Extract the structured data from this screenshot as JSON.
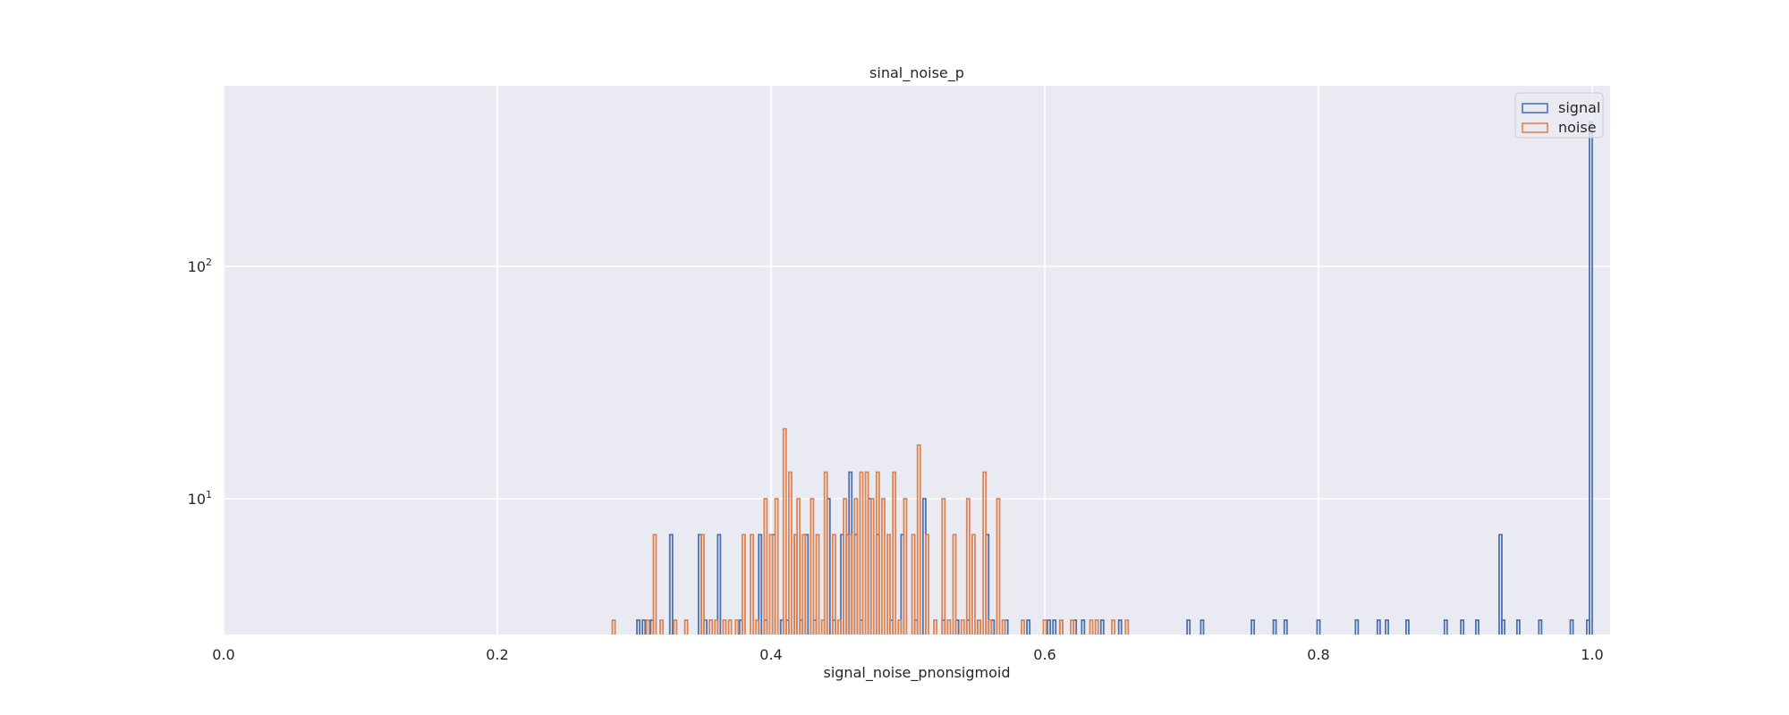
{
  "chart_data": {
    "type": "histogram",
    "histtype": "step",
    "title": "sinal_noise_p",
    "xlabel": "signal_noise_pnonsigmoid",
    "ylabel": "",
    "xlim": [
      0.0,
      1.0
    ],
    "xticks": [
      0.0,
      0.2,
      0.4,
      0.6,
      0.8,
      1.0
    ],
    "xtick_labels": [
      "0.0",
      "0.2",
      "0.4",
      "0.6",
      "0.8",
      "1.0"
    ],
    "yscale": "log",
    "ylim": [
      2.6,
      600
    ],
    "yticks": [
      10,
      100
    ],
    "ytick_labels": [
      "10",
      "100"
    ],
    "ytick_base": "10",
    "ytick_exponents": [
      "1",
      "2"
    ],
    "bin_width": 0.002,
    "grid": true,
    "legend_position": "upper right",
    "background": "#eaeaf2",
    "series": [
      {
        "name": "signal",
        "color": "#4c72b0",
        "bins": [
          [
            0.303,
            3
          ],
          [
            0.307,
            3
          ],
          [
            0.313,
            3
          ],
          [
            0.327,
            7
          ],
          [
            0.348,
            7
          ],
          [
            0.352,
            3
          ],
          [
            0.362,
            7
          ],
          [
            0.378,
            3
          ],
          [
            0.392,
            7
          ],
          [
            0.396,
            3
          ],
          [
            0.402,
            7
          ],
          [
            0.408,
            3
          ],
          [
            0.412,
            3
          ],
          [
            0.418,
            7
          ],
          [
            0.422,
            3
          ],
          [
            0.426,
            7
          ],
          [
            0.432,
            3
          ],
          [
            0.442,
            10
          ],
          [
            0.446,
            3
          ],
          [
            0.452,
            7
          ],
          [
            0.456,
            7
          ],
          [
            0.458,
            13
          ],
          [
            0.462,
            7
          ],
          [
            0.466,
            3
          ],
          [
            0.472,
            10
          ],
          [
            0.478,
            7
          ],
          [
            0.488,
            3
          ],
          [
            0.496,
            7
          ],
          [
            0.506,
            3
          ],
          [
            0.512,
            10
          ],
          [
            0.526,
            3
          ],
          [
            0.536,
            3
          ],
          [
            0.544,
            3
          ],
          [
            0.552,
            3
          ],
          [
            0.558,
            7
          ],
          [
            0.562,
            3
          ],
          [
            0.572,
            3
          ],
          [
            0.588,
            3
          ],
          [
            0.603,
            3
          ],
          [
            0.607,
            3
          ],
          [
            0.612,
            3
          ],
          [
            0.622,
            3
          ],
          [
            0.628,
            3
          ],
          [
            0.642,
            3
          ],
          [
            0.655,
            3
          ],
          [
            0.705,
            3
          ],
          [
            0.715,
            3
          ],
          [
            0.752,
            3
          ],
          [
            0.768,
            3
          ],
          [
            0.776,
            3
          ],
          [
            0.8,
            3
          ],
          [
            0.828,
            3
          ],
          [
            0.844,
            3
          ],
          [
            0.85,
            3
          ],
          [
            0.865,
            3
          ],
          [
            0.893,
            3
          ],
          [
            0.905,
            3
          ],
          [
            0.916,
            3
          ],
          [
            0.933,
            7
          ],
          [
            0.935,
            3
          ],
          [
            0.946,
            3
          ],
          [
            0.962,
            3
          ],
          [
            0.985,
            3
          ],
          [
            0.997,
            3
          ],
          [
            0.999,
            420
          ]
        ]
      },
      {
        "name": "noise",
        "color": "#dd8452",
        "bins": [
          [
            0.285,
            3
          ],
          [
            0.31,
            3
          ],
          [
            0.315,
            7
          ],
          [
            0.32,
            3
          ],
          [
            0.33,
            3
          ],
          [
            0.338,
            3
          ],
          [
            0.35,
            7
          ],
          [
            0.356,
            3
          ],
          [
            0.36,
            3
          ],
          [
            0.366,
            3
          ],
          [
            0.37,
            3
          ],
          [
            0.375,
            3
          ],
          [
            0.38,
            7
          ],
          [
            0.386,
            7
          ],
          [
            0.39,
            3
          ],
          [
            0.396,
            10
          ],
          [
            0.4,
            7
          ],
          [
            0.404,
            10
          ],
          [
            0.41,
            20
          ],
          [
            0.414,
            13
          ],
          [
            0.418,
            7
          ],
          [
            0.42,
            10
          ],
          [
            0.424,
            7
          ],
          [
            0.43,
            10
          ],
          [
            0.434,
            7
          ],
          [
            0.438,
            3
          ],
          [
            0.44,
            13
          ],
          [
            0.446,
            7
          ],
          [
            0.45,
            3
          ],
          [
            0.454,
            10
          ],
          [
            0.458,
            7
          ],
          [
            0.462,
            10
          ],
          [
            0.466,
            13
          ],
          [
            0.47,
            13
          ],
          [
            0.474,
            10
          ],
          [
            0.478,
            13
          ],
          [
            0.482,
            10
          ],
          [
            0.486,
            7
          ],
          [
            0.49,
            13
          ],
          [
            0.494,
            3
          ],
          [
            0.498,
            10
          ],
          [
            0.504,
            7
          ],
          [
            0.508,
            17
          ],
          [
            0.514,
            7
          ],
          [
            0.52,
            3
          ],
          [
            0.526,
            10
          ],
          [
            0.53,
            3
          ],
          [
            0.534,
            7
          ],
          [
            0.54,
            3
          ],
          [
            0.544,
            10
          ],
          [
            0.548,
            7
          ],
          [
            0.552,
            3
          ],
          [
            0.556,
            13
          ],
          [
            0.56,
            3
          ],
          [
            0.566,
            10
          ],
          [
            0.57,
            3
          ],
          [
            0.584,
            3
          ],
          [
            0.6,
            3
          ],
          [
            0.612,
            3
          ],
          [
            0.62,
            3
          ],
          [
            0.634,
            3
          ],
          [
            0.638,
            3
          ],
          [
            0.65,
            3
          ],
          [
            0.66,
            3
          ]
        ]
      }
    ]
  }
}
